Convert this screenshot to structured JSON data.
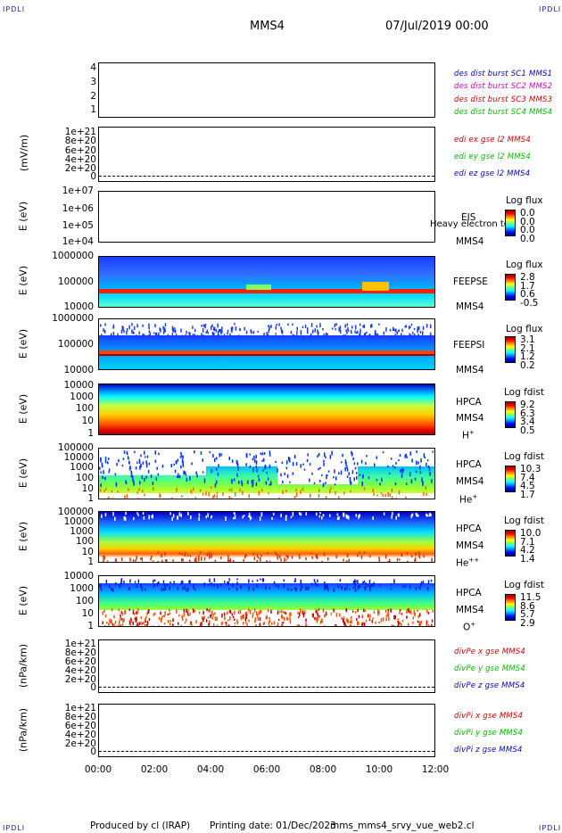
{
  "corners": {
    "tl": "IPDLI",
    "tr": "IPDLI",
    "bl": "IPDLI",
    "br": "IPDLI"
  },
  "header": {
    "title": "MMS4",
    "datetime": "07/Jul/2019 00:00"
  },
  "footer": {
    "produced": "Produced by cl (IRAP)",
    "printing": "Printing date: 01/Dec/2023",
    "file": "mms_mms4_srvy_vue_web2.cl"
  },
  "x_axis": {
    "ticks": [
      "00:00",
      "02:00",
      "04:00",
      "06:00",
      "08:00",
      "10:00",
      "12:00"
    ]
  },
  "colors": {
    "mms1": "#0000cc",
    "mms2": "#cc00cc",
    "mms3": "#cc0000",
    "mms4": "#00bb00"
  },
  "chart_data": [
    {
      "type": "line",
      "panel": "burst",
      "yticks": [
        "4",
        "3",
        "2",
        "1"
      ],
      "series": [
        {
          "name": "des dist burst SC1 MMS1",
          "color": "#0000cc"
        },
        {
          "name": "des dist burst SC2 MMS2",
          "color": "#cc00cc"
        },
        {
          "name": "des dist burst SC3 MMS3",
          "color": "#cc0000"
        },
        {
          "name": "des dist burst SC4 MMS4",
          "color": "#00bb00"
        }
      ]
    },
    {
      "type": "line",
      "panel": "edi",
      "ylabel": "(mV/m)",
      "yticks": [
        "1e+21",
        "8e+20",
        "6e+20",
        "4e+20",
        "2e+20",
        "0"
      ],
      "series": [
        {
          "name": "edi ex gse l2 MMS4",
          "color": "#cc0000"
        },
        {
          "name": "edi ey gse l2 MMS4",
          "color": "#00bb00"
        },
        {
          "name": "edi ez gse l2 MMS4",
          "color": "#0000cc"
        }
      ]
    },
    {
      "type": "heatmap",
      "panel": "eis",
      "ylabel": "E (eV)",
      "yticks": [
        "1e+07",
        "1e+06",
        "1e+05",
        "1e+04"
      ],
      "instrument": "EIS",
      "spacecraft": "MMS4",
      "overlay_text": "Heavy electron tof",
      "colorbar_title": "Log flux",
      "colorbar_labels": [
        "0.0",
        "0.0",
        "0.0",
        "0.0"
      ]
    },
    {
      "type": "heatmap",
      "panel": "feepse",
      "ylabel": "E (eV)",
      "yticks": [
        "1000000",
        "100000",
        "10000"
      ],
      "instrument": "FEEPSE",
      "spacecraft": "MMS4",
      "colorbar_title": "Log flux",
      "colorbar_labels": [
        "2.8",
        "1.7",
        "0.6",
        "-0.5"
      ]
    },
    {
      "type": "heatmap",
      "panel": "feepsi",
      "ylabel": "E (eV)",
      "yticks": [
        "1000000",
        "100000",
        "10000"
      ],
      "instrument": "FEEPSI",
      "spacecraft": "MMS4",
      "colorbar_title": "Log flux",
      "colorbar_labels": [
        "3.1",
        "2.1",
        "1.2",
        "0.2"
      ]
    },
    {
      "type": "heatmap",
      "panel": "hpca_h",
      "ylabel": "E (eV)",
      "yticks": [
        "10000",
        "1000",
        "100",
        "10",
        "1"
      ],
      "instrument": "HPCA",
      "spacecraft": "MMS4",
      "species": "H",
      "charge": "+",
      "colorbar_title": "Log fdist",
      "colorbar_labels": [
        "9.2",
        "6.3",
        "3.4",
        "0.5"
      ]
    },
    {
      "type": "heatmap",
      "panel": "hpca_he",
      "ylabel": "E (eV)",
      "yticks": [
        "100000",
        "10000",
        "1000",
        "100",
        "10",
        "1"
      ],
      "instrument": "HPCA",
      "spacecraft": "MMS4",
      "species": "He",
      "charge": "+",
      "colorbar_title": "Log fdist",
      "colorbar_labels": [
        "10.3",
        "7.4",
        "4.5",
        "1.7"
      ]
    },
    {
      "type": "heatmap",
      "panel": "hpca_hepp",
      "ylabel": "E (eV)",
      "yticks": [
        "100000",
        "10000",
        "1000",
        "100",
        "10",
        "1"
      ],
      "instrument": "HPCA",
      "spacecraft": "MMS4",
      "species": "He",
      "charge": "++",
      "colorbar_title": "Log fdist",
      "colorbar_labels": [
        "10.0",
        "7.1",
        "4.2",
        "1.4"
      ]
    },
    {
      "type": "heatmap",
      "panel": "hpca_o",
      "ylabel": "E (eV)",
      "yticks": [
        "10000",
        "1000",
        "100",
        "10",
        "1"
      ],
      "instrument": "HPCA",
      "spacecraft": "MMS4",
      "species": "O",
      "charge": "+",
      "colorbar_title": "Log fdist",
      "colorbar_labels": [
        "11.5",
        "8.6",
        "5.7",
        "2.9"
      ]
    },
    {
      "type": "line",
      "panel": "divpe",
      "ylabel": "(nPa/km)",
      "yticks": [
        "1e+21",
        "8e+20",
        "6e+20",
        "4e+20",
        "2e+20",
        "0"
      ],
      "series": [
        {
          "name": "divPe x gse MMS4",
          "color": "#cc0000"
        },
        {
          "name": "divPe y gse MMS4",
          "color": "#00bb00"
        },
        {
          "name": "divPe z gse MMS4",
          "color": "#0000cc"
        }
      ]
    },
    {
      "type": "line",
      "panel": "divpi",
      "ylabel": "(nPa/km)",
      "yticks": [
        "1e+21",
        "8e+20",
        "6e+20",
        "4e+20",
        "2e+20",
        "0"
      ],
      "series": [
        {
          "name": "divPi x gse MMS4",
          "color": "#cc0000"
        },
        {
          "name": "divPi y gse MMS4",
          "color": "#00bb00"
        },
        {
          "name": "divPi z gse MMS4",
          "color": "#0000cc"
        }
      ]
    }
  ]
}
